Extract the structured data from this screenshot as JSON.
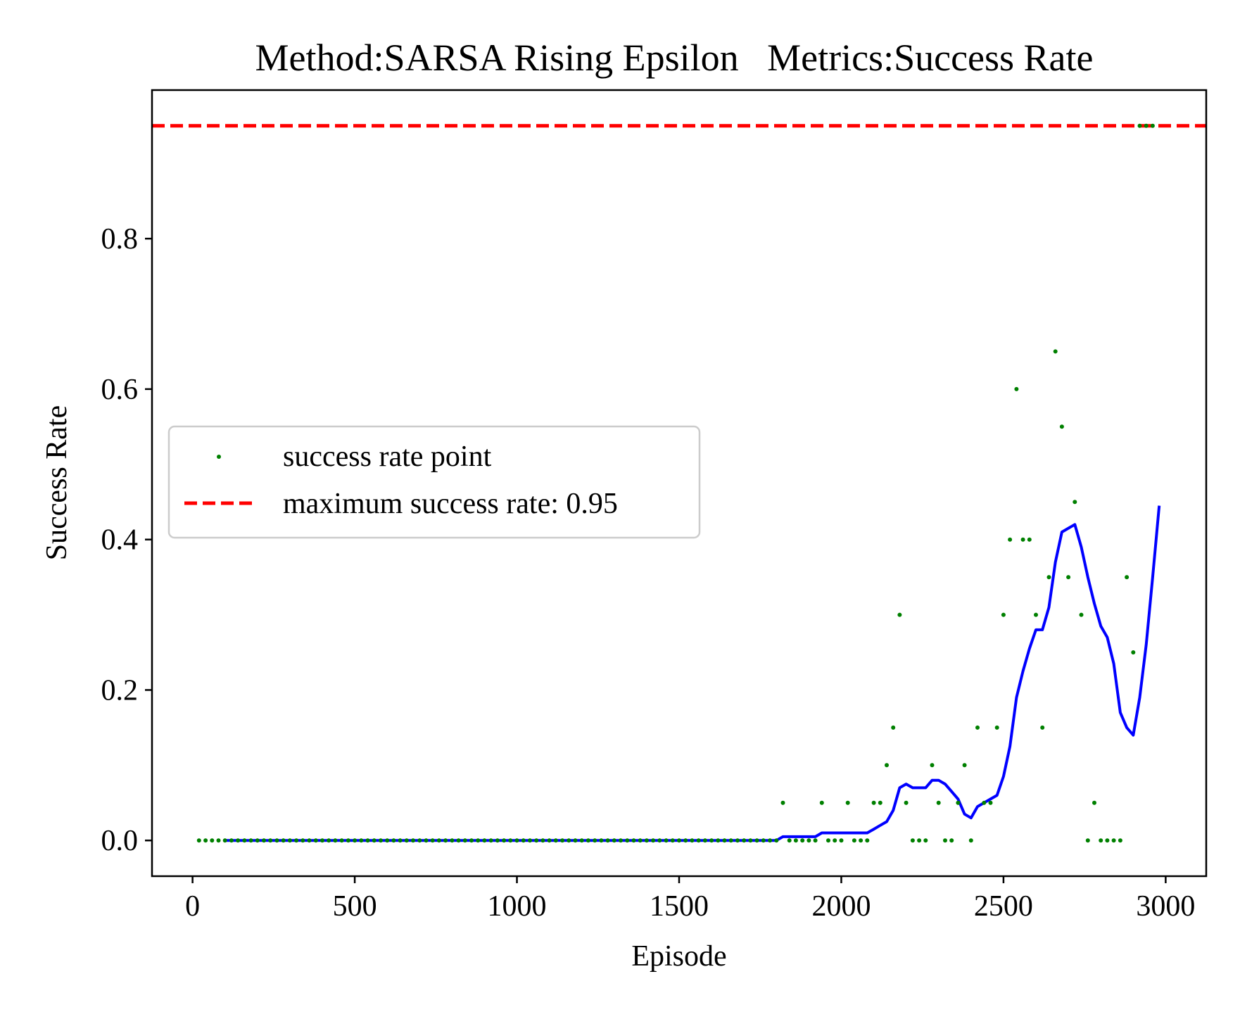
{
  "chart_data": {
    "type": "scatter",
    "title": "Method:SARSA Rising Epsilon   Metrics:Success Rate",
    "xlabel": "Episode",
    "ylabel": "Success Rate",
    "xlim": [
      -125,
      3125
    ],
    "ylim": [
      -0.0475,
      0.9975
    ],
    "xticks": [
      0,
      500,
      1000,
      1500,
      2000,
      2500,
      3000
    ],
    "yticks": [
      0.0,
      0.2,
      0.4,
      0.6,
      0.8
    ],
    "ytick_labels": [
      "0.0",
      "0.2",
      "0.4",
      "0.6",
      "0.8"
    ],
    "grid": false,
    "legend_position": "center-left",
    "legend": [
      {
        "label": "success rate point",
        "kind": "marker",
        "color": "#008000"
      },
      {
        "label": "maximum success rate: 0.95",
        "kind": "dashed-line",
        "color": "#ff0000"
      }
    ],
    "series": [
      {
        "name": "success rate point",
        "kind": "points",
        "color": "#008000",
        "x": [
          20,
          40,
          60,
          80,
          100,
          120,
          140,
          160,
          180,
          200,
          220,
          240,
          260,
          280,
          300,
          320,
          340,
          360,
          380,
          400,
          420,
          440,
          460,
          480,
          500,
          520,
          540,
          560,
          580,
          600,
          620,
          640,
          660,
          680,
          700,
          720,
          740,
          760,
          780,
          800,
          820,
          840,
          860,
          880,
          900,
          920,
          940,
          960,
          980,
          1000,
          1020,
          1040,
          1060,
          1080,
          1100,
          1120,
          1140,
          1160,
          1180,
          1200,
          1220,
          1240,
          1260,
          1280,
          1300,
          1320,
          1340,
          1360,
          1380,
          1400,
          1420,
          1440,
          1460,
          1480,
          1500,
          1520,
          1540,
          1560,
          1580,
          1600,
          1620,
          1640,
          1660,
          1680,
          1700,
          1720,
          1740,
          1760,
          1780,
          1800,
          1820,
          1840,
          1860,
          1880,
          1900,
          1920,
          1940,
          1960,
          1980,
          2000,
          2020,
          2040,
          2060,
          2080,
          2100,
          2120,
          2140,
          2160,
          2180,
          2200,
          2220,
          2240,
          2260,
          2280,
          2300,
          2320,
          2340,
          2360,
          2380,
          2400,
          2420,
          2440,
          2460,
          2480,
          2500,
          2520,
          2540,
          2560,
          2580,
          2600,
          2620,
          2640,
          2660,
          2680,
          2700,
          2720,
          2740,
          2760,
          2780,
          2800,
          2820,
          2840,
          2860,
          2880,
          2900,
          2920,
          2940,
          2960
        ],
        "y": [
          0,
          0,
          0,
          0,
          0,
          0,
          0,
          0,
          0,
          0,
          0,
          0,
          0,
          0,
          0,
          0,
          0,
          0,
          0,
          0,
          0,
          0,
          0,
          0,
          0,
          0,
          0,
          0,
          0,
          0,
          0,
          0,
          0,
          0,
          0,
          0,
          0,
          0,
          0,
          0,
          0,
          0,
          0,
          0,
          0,
          0,
          0,
          0,
          0,
          0,
          0,
          0,
          0,
          0,
          0,
          0,
          0,
          0,
          0,
          0,
          0,
          0,
          0,
          0,
          0,
          0,
          0,
          0,
          0,
          0,
          0,
          0,
          0,
          0,
          0,
          0,
          0,
          0,
          0,
          0,
          0,
          0,
          0,
          0,
          0,
          0,
          0,
          0,
          0,
          0,
          0.05,
          0,
          0,
          0,
          0,
          0,
          0.05,
          0,
          0,
          0,
          0.05,
          0,
          0,
          0,
          0.05,
          0.05,
          0.1,
          0.15,
          0.3,
          0.05,
          0,
          0,
          0,
          0.1,
          0.05,
          0,
          0,
          0.05,
          0.1,
          0,
          0.15,
          0.05,
          0.05,
          0.15,
          0.3,
          0.4,
          0.6,
          0.4,
          0.4,
          0.3,
          0.15,
          0.35,
          0.65,
          0.55,
          0.35,
          0.45,
          0.3,
          0,
          0.05,
          0,
          0,
          0,
          0,
          0.35,
          0.25,
          0.95,
          0.95,
          0.95
        ]
      },
      {
        "name": "",
        "kind": "line",
        "color": "#0000ff",
        "x": [
          100,
          200,
          300,
          400,
          500,
          600,
          700,
          800,
          900,
          1000,
          1100,
          1200,
          1300,
          1400,
          1500,
          1600,
          1700,
          1780,
          1800,
          1820,
          1840,
          1860,
          1880,
          1900,
          1920,
          1940,
          1960,
          1980,
          2000,
          2020,
          2040,
          2060,
          2080,
          2100,
          2120,
          2140,
          2160,
          2180,
          2200,
          2220,
          2240,
          2260,
          2280,
          2300,
          2320,
          2340,
          2360,
          2380,
          2400,
          2420,
          2440,
          2460,
          2480,
          2500,
          2520,
          2540,
          2560,
          2580,
          2600,
          2620,
          2640,
          2660,
          2680,
          2700,
          2720,
          2740,
          2760,
          2780,
          2800,
          2820,
          2840,
          2860,
          2880,
          2900,
          2920,
          2940,
          2960,
          2980
        ],
        "y": [
          0,
          0,
          0,
          0,
          0,
          0,
          0,
          0,
          0,
          0,
          0,
          0,
          0,
          0,
          0,
          0,
          0,
          0,
          0,
          0.005,
          0.005,
          0.005,
          0.005,
          0.005,
          0.005,
          0.01,
          0.01,
          0.01,
          0.01,
          0.01,
          0.01,
          0.01,
          0.01,
          0.015,
          0.02,
          0.025,
          0.04,
          0.07,
          0.075,
          0.07,
          0.07,
          0.07,
          0.08,
          0.08,
          0.075,
          0.065,
          0.055,
          0.035,
          0.03,
          0.045,
          0.05,
          0.055,
          0.06,
          0.085,
          0.125,
          0.19,
          0.225,
          0.255,
          0.28,
          0.28,
          0.31,
          0.37,
          0.41,
          0.415,
          0.42,
          0.39,
          0.35,
          0.315,
          0.285,
          0.27,
          0.235,
          0.17,
          0.15,
          0.14,
          0.19,
          0.26,
          0.35,
          0.445
        ]
      },
      {
        "name": "maximum success rate: 0.95",
        "kind": "hline",
        "color": "#ff0000",
        "y": 0.95
      }
    ]
  }
}
